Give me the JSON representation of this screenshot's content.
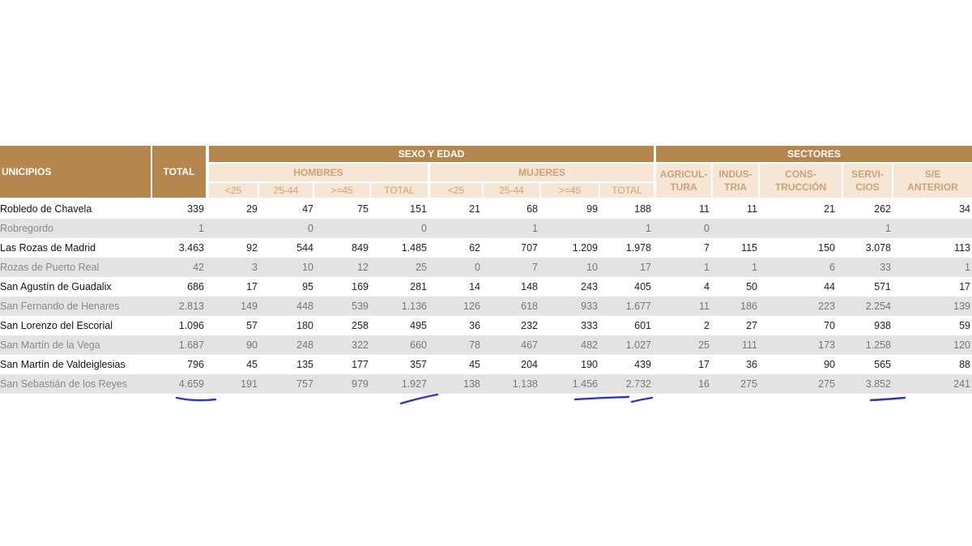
{
  "header": {
    "municipios": "UNICIPIOS",
    "total": "TOTAL",
    "sexo_edad": "SEXO Y EDAD",
    "sectores": "SECTORES",
    "hombres": "HOMBRES",
    "mujeres": "MUJERES",
    "age_groups": [
      "<25",
      "25-44",
      ">=45",
      "TOTAL"
    ],
    "sector_cols": [
      "AGRICUL-\nTURA",
      "INDUS-\nTRIA",
      "CONS-\nTRUCCIÓN",
      "SERVI-\nCIOS",
      "S/E\nANTERIOR"
    ]
  },
  "rows": [
    {
      "name": "Robledo de Chavela",
      "total": "339",
      "h": [
        "29",
        "47",
        "75",
        "151"
      ],
      "m": [
        "21",
        "68",
        "99",
        "188"
      ],
      "s": [
        "11",
        "11",
        "21",
        "262",
        "34"
      ]
    },
    {
      "name": "Robregordo",
      "total": "1",
      "h": [
        "",
        "0",
        "",
        "0"
      ],
      "m": [
        "",
        "1",
        "",
        "1"
      ],
      "s": [
        "0",
        "",
        "",
        "1",
        ""
      ]
    },
    {
      "name": "Las Rozas de Madrid",
      "total": "3.463",
      "h": [
        "92",
        "544",
        "849",
        "1.485"
      ],
      "m": [
        "62",
        "707",
        "1.209",
        "1.978"
      ],
      "s": [
        "7",
        "115",
        "150",
        "3.078",
        "113"
      ]
    },
    {
      "name": "Rozas de Puerto Real",
      "total": "42",
      "h": [
        "3",
        "10",
        "12",
        "25"
      ],
      "m": [
        "0",
        "7",
        "10",
        "17"
      ],
      "s": [
        "1",
        "1",
        "6",
        "33",
        "1"
      ]
    },
    {
      "name": "San Agustín de Guadalix",
      "total": "686",
      "h": [
        "17",
        "95",
        "169",
        "281"
      ],
      "m": [
        "14",
        "148",
        "243",
        "405"
      ],
      "s": [
        "4",
        "50",
        "44",
        "571",
        "17"
      ]
    },
    {
      "name": "San Fernando de Henares",
      "total": "2.813",
      "h": [
        "149",
        "448",
        "539",
        "1.136"
      ],
      "m": [
        "126",
        "618",
        "933",
        "1.677"
      ],
      "s": [
        "11",
        "186",
        "223",
        "2.254",
        "139"
      ]
    },
    {
      "name": "San Lorenzo del Escorial",
      "total": "1.096",
      "h": [
        "57",
        "180",
        "258",
        "495"
      ],
      "m": [
        "36",
        "232",
        "333",
        "601"
      ],
      "s": [
        "2",
        "27",
        "70",
        "938",
        "59"
      ]
    },
    {
      "name": "San Martín de la Vega",
      "total": "1.687",
      "h": [
        "90",
        "248",
        "322",
        "660"
      ],
      "m": [
        "78",
        "467",
        "482",
        "1.027"
      ],
      "s": [
        "25",
        "111",
        "173",
        "1.258",
        "120"
      ]
    },
    {
      "name": "San Martín de Valdeiglesias",
      "total": "796",
      "h": [
        "45",
        "135",
        "177",
        "357"
      ],
      "m": [
        "45",
        "204",
        "190",
        "439"
      ],
      "s": [
        "17",
        "36",
        "90",
        "565",
        "88"
      ]
    },
    {
      "name": "San Sebastián de los Reyes",
      "total": "4.659",
      "h": [
        "191",
        "757",
        "979",
        "1.927"
      ],
      "m": [
        "138",
        "1.138",
        "1.456",
        "2.732"
      ],
      "s": [
        "16",
        "275",
        "275",
        "3.852",
        "241"
      ]
    }
  ],
  "annotation_color": "#2a35d8"
}
